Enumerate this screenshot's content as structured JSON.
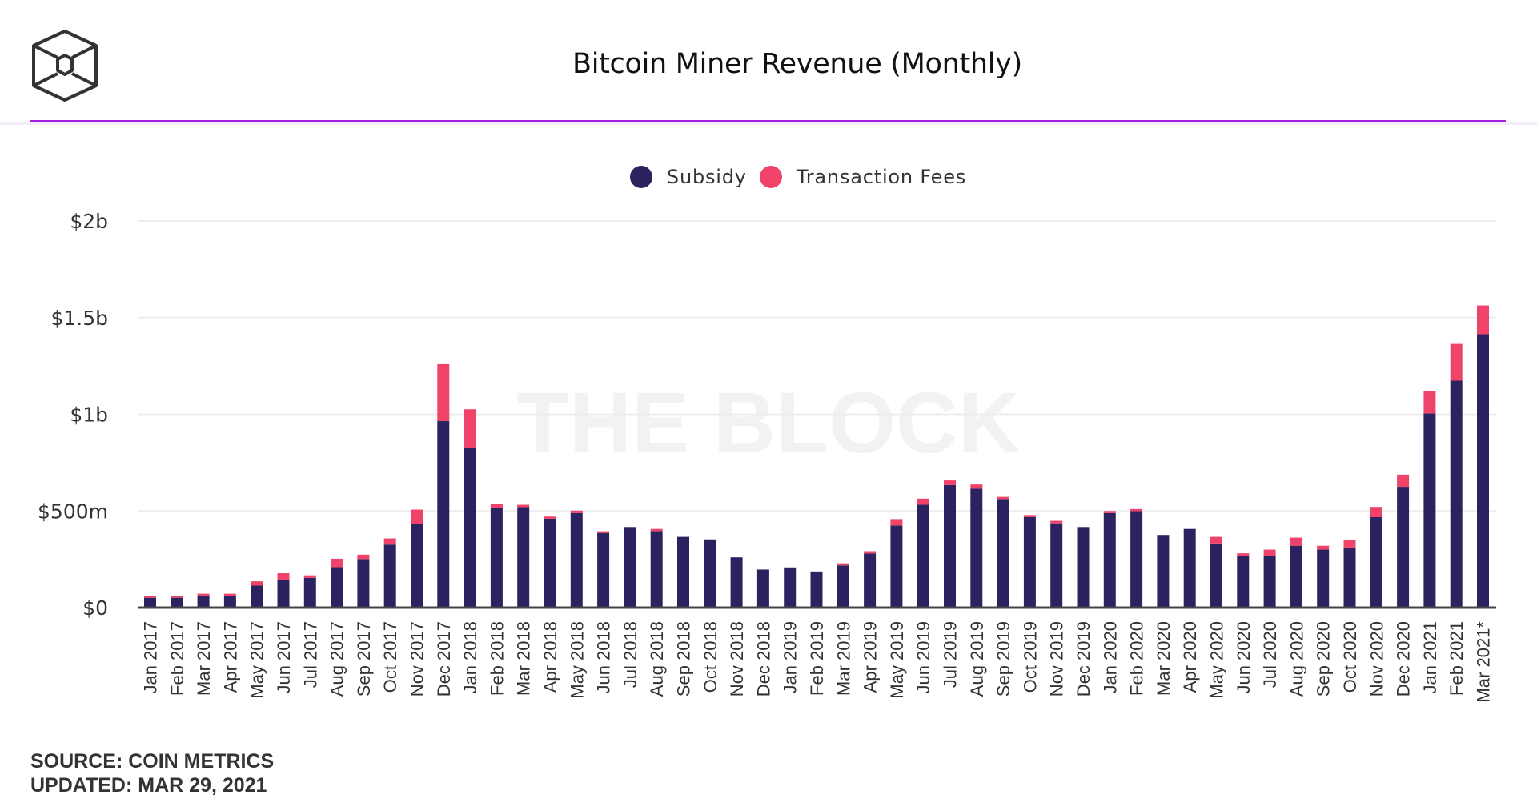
{
  "header": {
    "logo_icon": "the-block-cube-icon",
    "title": "Bitcoin Miner Revenue (Monthly)",
    "accent_color": "#a11fe0"
  },
  "legend": [
    {
      "label": "Subsidy",
      "color": "#2b2360"
    },
    {
      "label": "Transaction Fees",
      "color": "#f0436a"
    }
  ],
  "watermark": "THE BLOCK",
  "footer": {
    "source": "SOURCE: COIN METRICS",
    "updated": "UPDATED: MAR 29, 2021"
  },
  "chart_data": {
    "type": "bar",
    "stacked": true,
    "title": "Bitcoin Miner Revenue (Monthly)",
    "xlabel": "",
    "ylabel": "",
    "ylim": [
      0,
      2000
    ],
    "units": "USD millions",
    "grid": true,
    "legend_position": "top-center",
    "yticks": [
      {
        "value": 0,
        "label": "$0"
      },
      {
        "value": 500,
        "label": "$500m"
      },
      {
        "value": 1000,
        "label": "$1b"
      },
      {
        "value": 1500,
        "label": "$1.5b"
      },
      {
        "value": 2000,
        "label": "$2b"
      }
    ],
    "categories": [
      "Jan 2017",
      "Feb 2017",
      "Mar 2017",
      "Apr 2017",
      "May 2017",
      "Jun 2017",
      "Jul 2017",
      "Aug 2017",
      "Sep 2017",
      "Oct 2017",
      "Nov 2017",
      "Dec 2017",
      "Jan 2018",
      "Feb 2018",
      "Mar 2018",
      "Apr 2018",
      "May 2018",
      "Jun 2018",
      "Jul 2018",
      "Aug 2018",
      "Sep 2018",
      "Oct 2018",
      "Nov 2018",
      "Dec 2018",
      "Jan 2019",
      "Feb 2019",
      "Mar 2019",
      "Apr 2019",
      "May 2019",
      "Jun 2019",
      "Jul 2019",
      "Aug 2019",
      "Sep 2019",
      "Oct 2019",
      "Nov 2019",
      "Dec 2019",
      "Jan 2020",
      "Feb 2020",
      "Mar 2020",
      "Apr 2020",
      "May 2020",
      "Jun 2020",
      "Jul 2020",
      "Aug 2020",
      "Sep 2020",
      "Oct 2020",
      "Nov 2020",
      "Dec 2020",
      "Jan 2021",
      "Feb 2021",
      "Mar 2021*"
    ],
    "series": [
      {
        "name": "Subsidy",
        "color": "#2b2360",
        "values": [
          51,
          51,
          60,
          60,
          114,
          145,
          154,
          209,
          251,
          326,
          431,
          965,
          826,
          515,
          520,
          460,
          489,
          385,
          417,
          396,
          366,
          353,
          260,
          197,
          208,
          187,
          218,
          280,
          425,
          532,
          634,
          615,
          562,
          468,
          436,
          417,
          489,
          499,
          376,
          407,
          332,
          269,
          267,
          320,
          300,
          311,
          468,
          625,
          1004,
          1174,
          1414
        ]
      },
      {
        "name": "Transaction Fees",
        "color": "#f0436a",
        "values": [
          11,
          11,
          12,
          12,
          22,
          33,
          13,
          44,
          23,
          32,
          76,
          294,
          200,
          23,
          12,
          11,
          13,
          10,
          0,
          11,
          0,
          0,
          0,
          0,
          0,
          0,
          11,
          12,
          33,
          32,
          24,
          22,
          11,
          11,
          13,
          0,
          11,
          11,
          0,
          0,
          34,
          12,
          33,
          42,
          20,
          41,
          53,
          63,
          117,
          190,
          149
        ]
      }
    ]
  }
}
